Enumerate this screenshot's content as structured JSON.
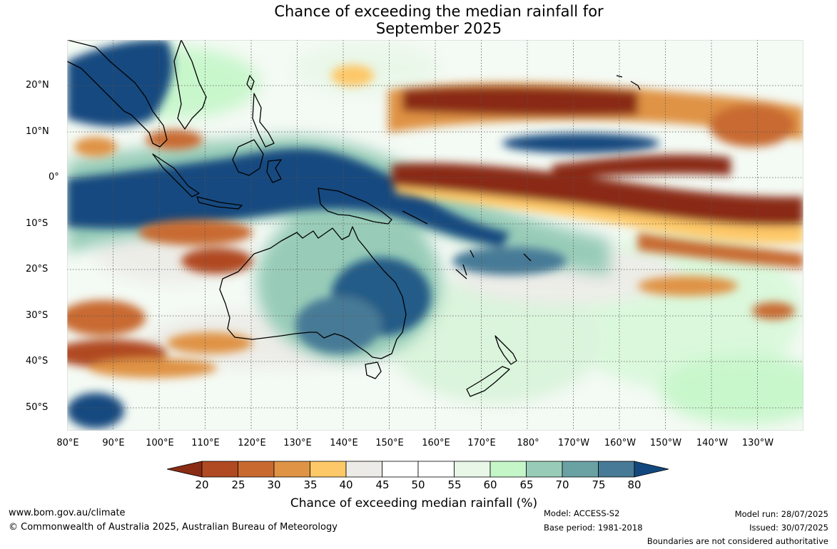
{
  "title": {
    "line1": "Chance of exceeding the median rainfall for",
    "line2": "September 2025"
  },
  "map": {
    "lat_labels": [
      "20°N",
      "10°N",
      "0°",
      "10°S",
      "20°S",
      "30°S",
      "40°S",
      "50°S"
    ],
    "lon_labels": [
      "80°E",
      "90°E",
      "100°E",
      "110°E",
      "120°E",
      "130°E",
      "140°E",
      "150°E",
      "160°E",
      "170°E",
      "180°",
      "170°W",
      "160°W",
      "150°W",
      "140°W",
      "130°W"
    ],
    "region": "Australia, Indian Ocean and western Pacific",
    "extent": {
      "lon_min": "80°E",
      "lon_max": "120°W",
      "lat_min": "55°S",
      "lat_max": "30°N"
    }
  },
  "legend": {
    "ticks": [
      "20",
      "25",
      "30",
      "35",
      "40",
      "45",
      "50",
      "55",
      "60",
      "65",
      "70",
      "75",
      "80"
    ],
    "colors": [
      "#8a2b13",
      "#b04a22",
      "#c86a30",
      "#df9345",
      "#fdc868",
      "#ecebe7",
      "#ffffff",
      "#ffffff",
      "#e8f7e8",
      "#c4f6c8",
      "#98ccb8",
      "#6aa2a4",
      "#467a96",
      "#13487f"
    ],
    "label": "Chance of exceeding median rainfall (%)"
  },
  "footer": {
    "website": "www.bom.gov.au/climate",
    "copyright": "© Commonwealth of Australia 2025, Australian Bureau of Meteorology",
    "model": "Model: ACCESS-S2",
    "base_period": "Base period: 1981-2018",
    "model_run": "Model run: 28/07/2025",
    "issued": "Issued: 30/07/2025",
    "disclaimer": "Boundaries are not considered authoritative"
  }
}
